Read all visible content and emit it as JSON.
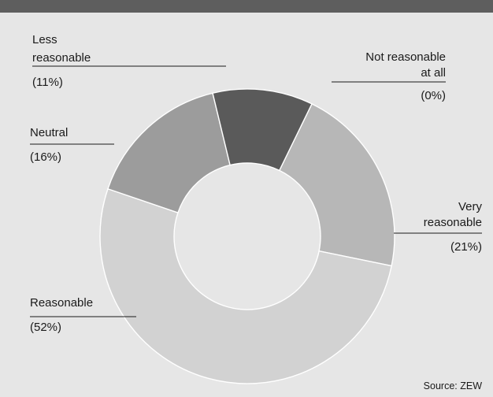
{
  "chart_data": {
    "type": "pie",
    "categories": [
      "Not reasonable at all",
      "Very reasonable",
      "Reasonable",
      "Neutral",
      "Less reasonable"
    ],
    "series": [
      {
        "values": [
          0,
          21,
          52,
          16,
          11
        ],
        "colors": [
          "#555555",
          "#b7b7b7",
          "#d2d2d2",
          "#9c9c9c",
          "#5a5a5a"
        ]
      }
    ],
    "labels": [
      {
        "lines": [
          "Not reasonable",
          "at all"
        ],
        "pct": "(0%)"
      },
      {
        "lines": [
          "Very",
          "reasonable"
        ],
        "pct": "(21%)"
      },
      {
        "lines": [
          "Reasonable"
        ],
        "pct": "(52%)"
      },
      {
        "lines": [
          "Neutral"
        ],
        "pct": "(16%)"
      },
      {
        "lines": [
          "Less",
          "reasonable"
        ],
        "pct": "(11%)"
      }
    ],
    "donut": true,
    "legend": "none"
  },
  "source": "Source: ZEW"
}
